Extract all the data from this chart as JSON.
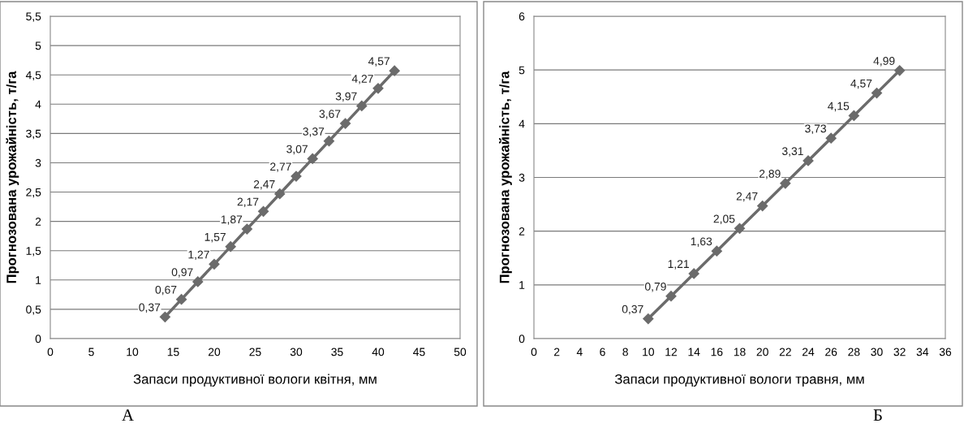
{
  "chart_data": [
    {
      "type": "line",
      "xlabel": "Запаси продуктивної вологи квітня, мм",
      "ylabel": "Прогнозована урожайність, т/га",
      "annotations": [
        "А"
      ],
      "x": [
        14,
        16,
        18,
        20,
        22,
        24,
        26,
        28,
        30,
        32,
        34,
        36,
        38,
        40,
        42
      ],
      "series": [
        {
          "color": "#6b6b6b",
          "values": [
            0.37,
            0.67,
            0.97,
            1.27,
            1.57,
            1.87,
            2.17,
            2.47,
            2.77,
            3.07,
            3.37,
            3.67,
            3.97,
            4.27,
            4.57
          ],
          "value_labels": [
            "0,37",
            "0,67",
            "0,97",
            "1,27",
            "1,57",
            "1,87",
            "2,17",
            "2,47",
            "2,77",
            "3,07",
            "3,37",
            "3,67",
            "3,97",
            "4,27",
            "4,57"
          ]
        }
      ],
      "xlim": [
        0,
        50
      ],
      "xticks": [
        0,
        5,
        10,
        15,
        20,
        25,
        30,
        35,
        40,
        45,
        50
      ],
      "ylim": [
        0,
        5.5
      ],
      "yticks": [
        0,
        {
          "value": 0.5,
          "label": "0,5"
        },
        1,
        {
          "value": 1.5,
          "label": "1,5"
        },
        2,
        {
          "value": 2.5,
          "label": "2,5"
        },
        3,
        {
          "value": 3.5,
          "label": "3,5"
        },
        4,
        {
          "value": 4.5,
          "label": "4,5"
        },
        5,
        {
          "value": 5.5,
          "label": "5,5"
        }
      ],
      "grid": "y",
      "marker": "diamond",
      "line_style": "solid",
      "legend": false
    },
    {
      "type": "line",
      "xlabel": "Запаси продуктивної вологи травня, мм",
      "ylabel": "Прогнозована урожайність, т/га",
      "annotations": [
        "Б"
      ],
      "x": [
        10,
        12,
        14,
        16,
        18,
        20,
        22,
        24,
        26,
        28,
        30,
        32
      ],
      "series": [
        {
          "color": "#6b6b6b",
          "values": [
            0.37,
            0.79,
            1.21,
            1.63,
            2.05,
            2.47,
            2.89,
            3.31,
            3.73,
            4.15,
            4.57,
            4.99
          ],
          "value_labels": [
            "0,37",
            "0,79",
            "1,21",
            "1,63",
            "2,05",
            "2,47",
            "2,89",
            "3,31",
            "3,73",
            "4,15",
            "4,57",
            "4,99"
          ]
        }
      ],
      "xlim": [
        0,
        36
      ],
      "xticks": [
        0,
        2,
        4,
        6,
        8,
        10,
        12,
        14,
        16,
        18,
        20,
        22,
        24,
        26,
        28,
        30,
        32,
        34,
        36
      ],
      "ylim": [
        0,
        6
      ],
      "yticks": [
        0,
        1,
        2,
        3,
        4,
        5,
        6
      ],
      "grid": "y",
      "marker": "diamond",
      "line_style": "solid",
      "legend": false
    }
  ]
}
